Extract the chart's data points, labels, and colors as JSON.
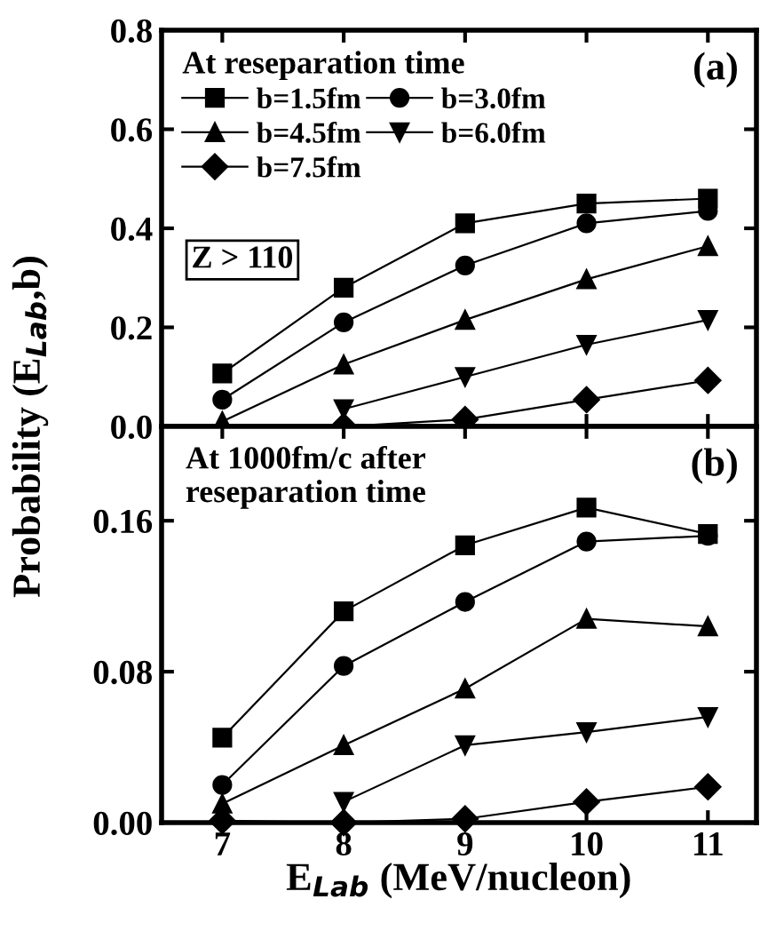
{
  "chart_data": [
    {
      "type": "line",
      "ylabel": "Probability (E$_{Lab}$,b)",
      "legend_title": "At reseparation time",
      "legend": "top left",
      "tick_labels": "y",
      "grid": false,
      "line_style": "solid",
      "x": [
        7,
        8,
        9,
        10,
        11
      ],
      "xlim": [
        6.5,
        11.4
      ],
      "xticks": [
        7,
        8,
        9,
        10,
        11
      ],
      "ylim": [
        0,
        0.8
      ],
      "yticks": [
        {
          "value": 0,
          "label": "0.0"
        },
        {
          "value": 0.2,
          "label": "0.2"
        },
        {
          "value": 0.4,
          "label": "0.4"
        },
        {
          "value": 0.6,
          "label": "0.6"
        },
        {
          "value": 0.8,
          "label": "0.8"
        }
      ],
      "annotations": [
        "(a)",
        "Z > 110"
      ],
      "series": [
        {
          "name": "b=1.5fm",
          "color": "#000000",
          "marker": "square",
          "values": [
            0.107,
            0.28,
            0.41,
            0.45,
            0.46
          ]
        },
        {
          "name": "b=3.0fm",
          "color": "#000000",
          "marker": "circle",
          "values": [
            0.054,
            0.21,
            0.325,
            0.41,
            0.435
          ]
        },
        {
          "name": "b=4.5fm",
          "color": "#000000",
          "marker": "triangle",
          "values": [
            0.01,
            0.125,
            0.215,
            0.297,
            0.364
          ]
        },
        {
          "name": "b=6.0fm",
          "color": "#000000",
          "marker": "triangle_down",
          "values": [
            null,
            0.035,
            0.1,
            0.165,
            0.215
          ]
        },
        {
          "name": "b=7.5fm",
          "color": "#000000",
          "marker": "diamond",
          "values": [
            null,
            0.0,
            0.014,
            0.054,
            0.093
          ]
        }
      ]
    },
    {
      "type": "line",
      "xlabel": "E$_{Lab}$ (MeV/nucleon)",
      "grid": false,
      "line_style": "solid",
      "x": [
        7,
        8,
        9,
        10,
        11
      ],
      "xlim": [
        6.5,
        11.4
      ],
      "xticks": [
        7,
        8,
        9,
        10,
        11
      ],
      "ylim": [
        0,
        0.21
      ],
      "yticks": [
        {
          "value": 0,
          "label": "0.00"
        },
        {
          "value": 0.08,
          "label": "0.08"
        },
        {
          "value": 0.16,
          "label": "0.16"
        }
      ],
      "annotations": [
        "At 1000fm/c after\nreseparation time",
        "(b)"
      ],
      "series": [
        {
          "color": "#000000",
          "marker": "square",
          "values": [
            0.045,
            0.112,
            0.147,
            0.167,
            0.153
          ]
        },
        {
          "color": "#000000",
          "marker": "circle",
          "values": [
            0.02,
            0.083,
            0.117,
            0.149,
            0.152
          ]
        },
        {
          "color": "#000000",
          "marker": "triangle",
          "values": [
            0.01,
            0.041,
            0.071,
            0.108,
            0.104
          ]
        },
        {
          "color": "#000000",
          "marker": "triangle_down",
          "values": [
            null,
            0.011,
            0.041,
            0.048,
            0.056
          ]
        },
        {
          "color": "#000000",
          "marker": "diamond",
          "values": [
            0.001,
            0.0,
            0.002,
            0.011,
            0.019
          ]
        }
      ]
    }
  ]
}
